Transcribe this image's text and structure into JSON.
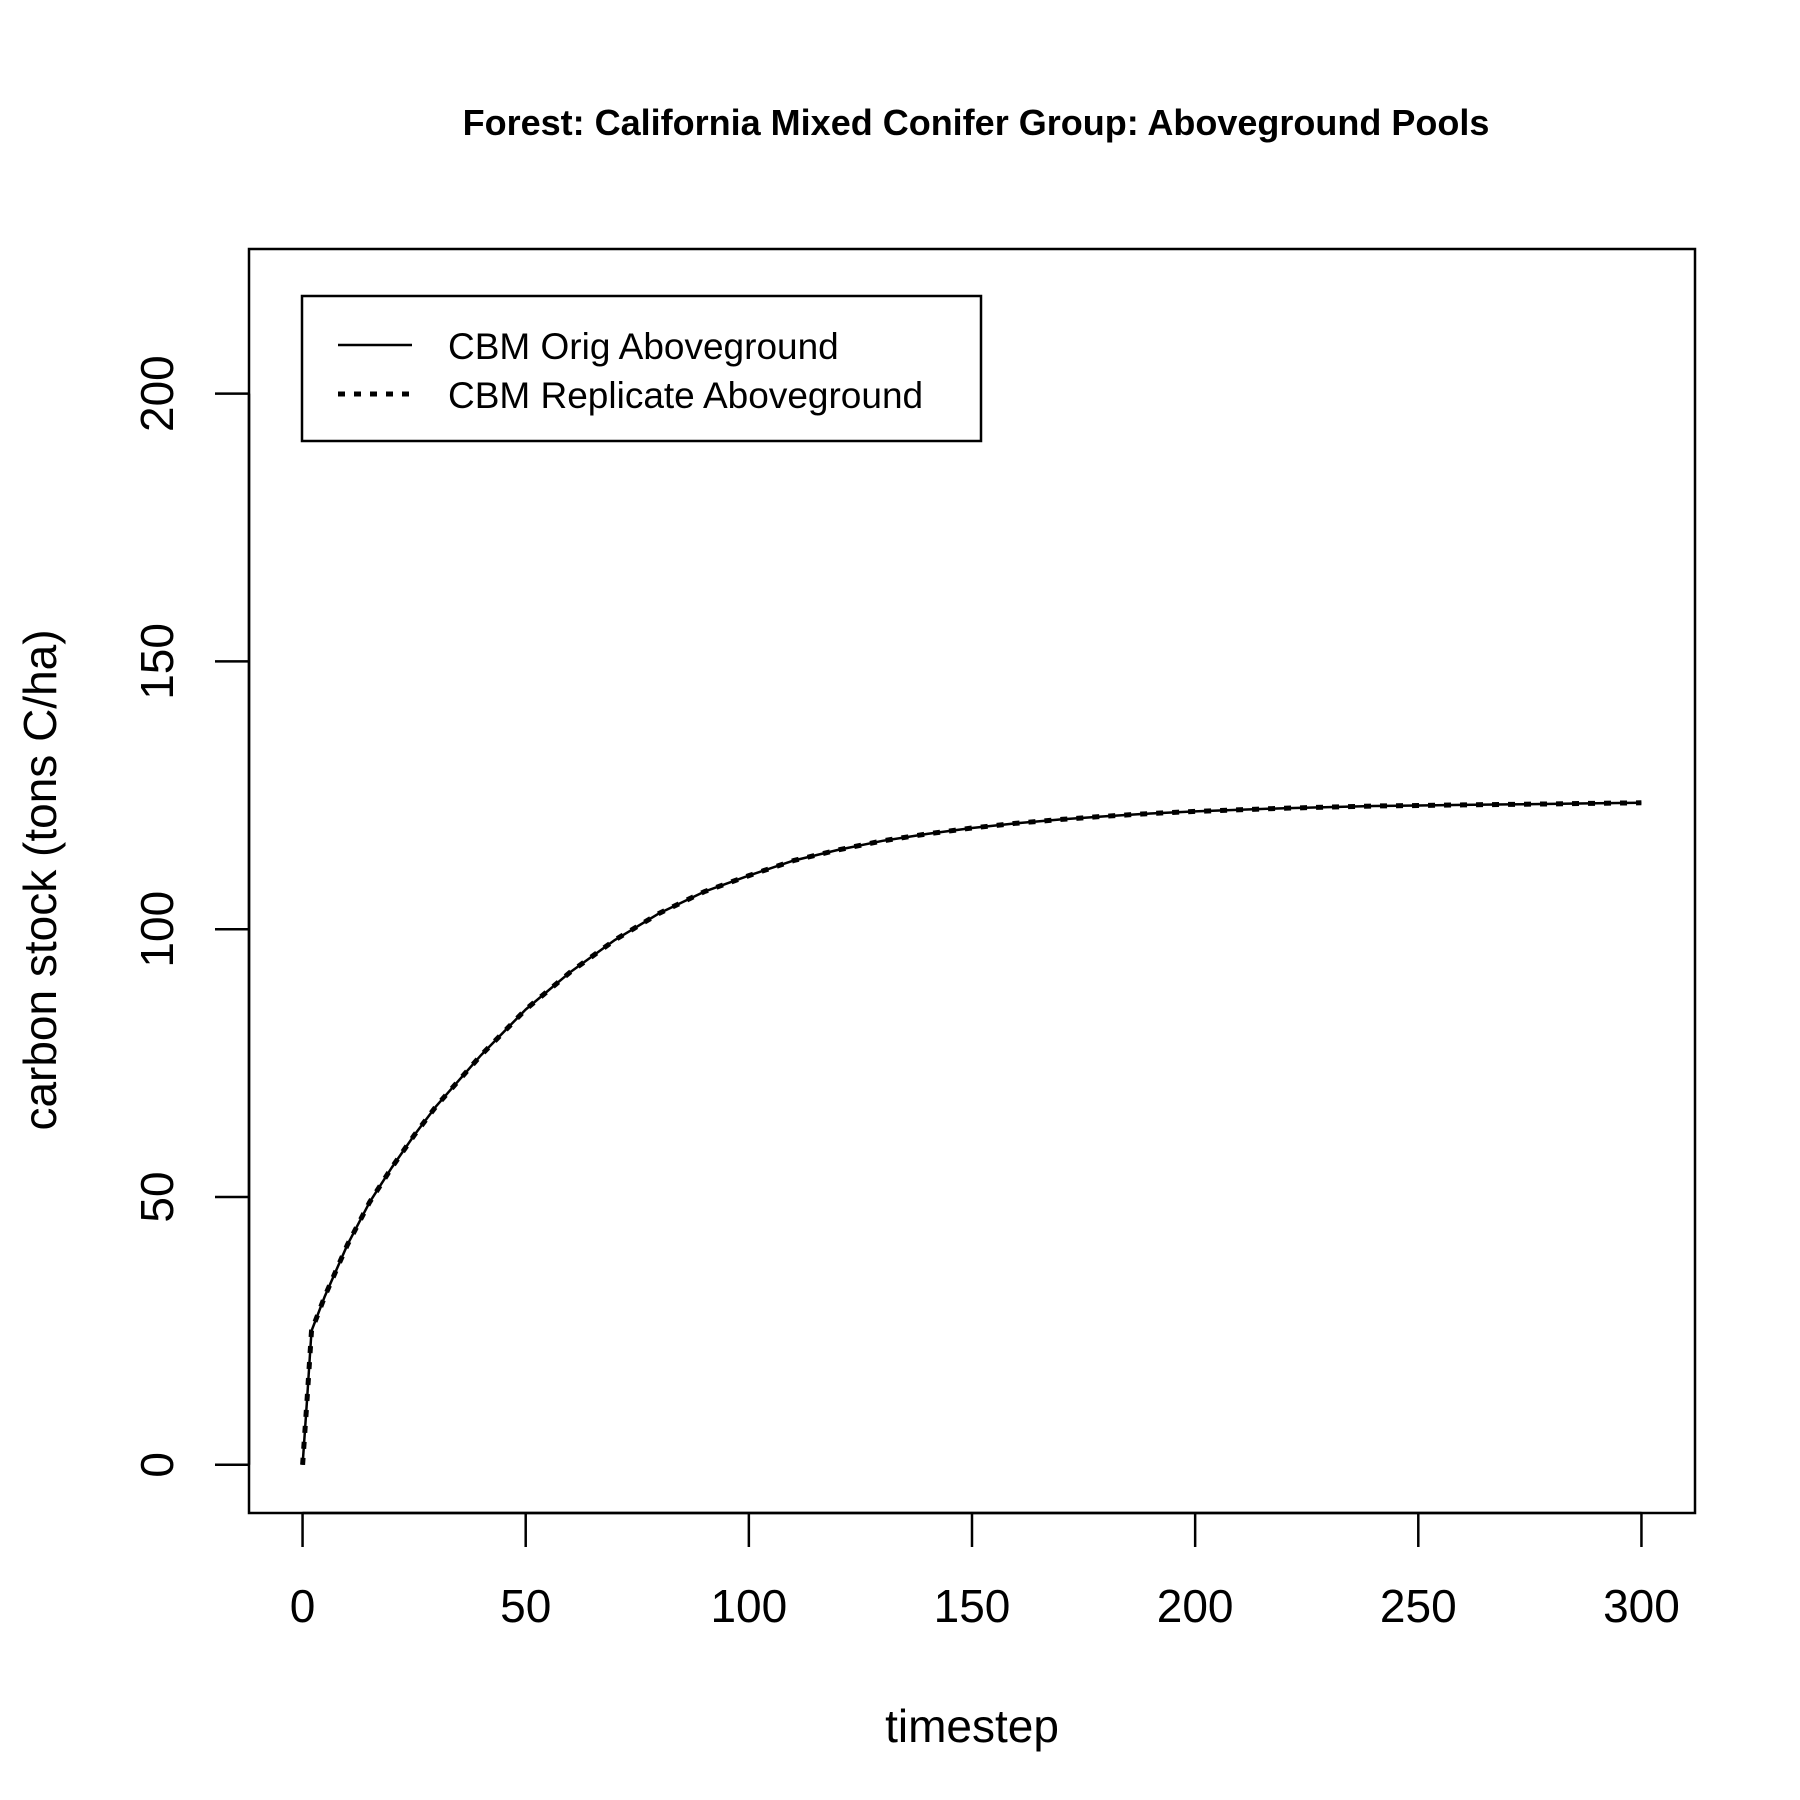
{
  "chart_data": {
    "type": "line",
    "title": "Forest: California Mixed Conifer Group: Aboveground Pools",
    "xlabel": "timestep",
    "ylabel": "carbon stock (tons C/ha)",
    "xlim": [
      -12,
      312
    ],
    "ylim": [
      -9,
      227
    ],
    "x_ticks": [
      0,
      50,
      100,
      150,
      200,
      250,
      300
    ],
    "y_ticks": [
      0,
      50,
      100,
      150,
      200
    ],
    "x_tick_labels": [
      "0",
      "50",
      "100",
      "150",
      "200",
      "250",
      "300"
    ],
    "y_tick_labels": [
      "0",
      "50",
      "100",
      "150",
      "200"
    ],
    "grid": false,
    "legend_position": "top-left",
    "x": [
      0,
      1,
      2,
      5,
      10,
      15,
      20,
      25,
      30,
      40,
      50,
      60,
      70,
      80,
      90,
      100,
      110,
      120,
      130,
      140,
      150,
      160,
      170,
      180,
      190,
      200,
      210,
      220,
      230,
      240,
      250,
      260,
      270,
      280,
      290,
      300
    ],
    "series": [
      {
        "name": "CBM Orig Aboveground",
        "line_style": "solid",
        "color": "#000000",
        "values": [
          0,
          12,
          25,
          31.5,
          41,
          49,
          55.5,
          61.5,
          67,
          76.5,
          85,
          92,
          98,
          103,
          107,
          110,
          112.8,
          114.8,
          116.5,
          117.8,
          118.9,
          119.8,
          120.5,
          121.1,
          121.6,
          122.0,
          122.3,
          122.6,
          122.8,
          123.0,
          123.1,
          123.2,
          123.3,
          123.4,
          123.5,
          123.6
        ]
      },
      {
        "name": "CBM Replicate Aboveground",
        "line_style": "dashed",
        "color": "#000000",
        "values": [
          0,
          12,
          25,
          31.5,
          41,
          49,
          55.5,
          61.5,
          67,
          76.5,
          85,
          92,
          98,
          103,
          107,
          110,
          112.8,
          114.8,
          116.5,
          117.8,
          118.9,
          119.8,
          120.5,
          121.1,
          121.6,
          122.0,
          122.3,
          122.6,
          122.8,
          123.0,
          123.1,
          123.2,
          123.3,
          123.4,
          123.5,
          123.6
        ]
      }
    ]
  }
}
